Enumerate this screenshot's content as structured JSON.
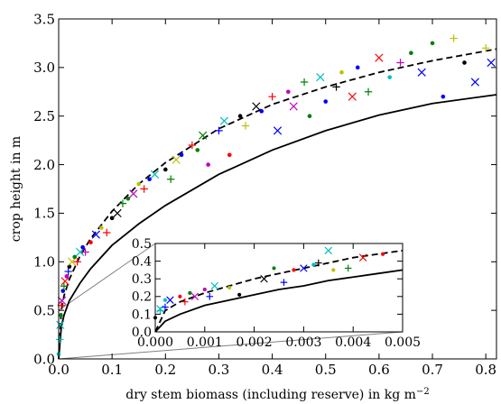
{
  "chart_data": {
    "type": "scatter",
    "title": "",
    "xlabel": "dry stem biomass (including reserve) in kg m",
    "xlabel_superscript": "−2",
    "ylabel": "crop height in m",
    "xlim": [
      0.0,
      0.82
    ],
    "ylim": [
      0.0,
      3.5
    ],
    "xticks": [
      "0.0",
      "0.1",
      "0.2",
      "0.3",
      "0.4",
      "0.5",
      "0.6",
      "0.7",
      "0.8"
    ],
    "yticks": [
      "0.0",
      "0.5",
      "1.0",
      "1.5",
      "2.0",
      "2.5",
      "3.0",
      "3.5"
    ],
    "grid": false,
    "series": [
      {
        "style": "dashed",
        "color": "#000000",
        "x": [
          0.0,
          0.005,
          0.01,
          0.02,
          0.04,
          0.06,
          0.1,
          0.15,
          0.2,
          0.3,
          0.4,
          0.5,
          0.6,
          0.7,
          0.82
        ],
        "y": [
          0.0,
          0.5,
          0.65,
          0.82,
          1.06,
          1.24,
          1.52,
          1.8,
          2.02,
          2.37,
          2.62,
          2.8,
          2.95,
          3.07,
          3.19
        ]
      },
      {
        "style": "solid",
        "color": "#000000",
        "x": [
          0.0,
          0.005,
          0.01,
          0.02,
          0.04,
          0.06,
          0.1,
          0.15,
          0.2,
          0.3,
          0.4,
          0.5,
          0.6,
          0.7,
          0.82
        ],
        "y": [
          0.0,
          0.33,
          0.45,
          0.6,
          0.78,
          0.93,
          1.17,
          1.39,
          1.58,
          1.9,
          2.15,
          2.35,
          2.51,
          2.63,
          2.72
        ]
      },
      {
        "style": "markers",
        "points": [
          [
            0.0,
            0.05,
            "dot",
            "#00bfbf"
          ],
          [
            0.002,
            0.2,
            "plus",
            "#00bfbf"
          ],
          [
            0.003,
            0.35,
            "x",
            "#00bfbf"
          ],
          [
            0.004,
            0.45,
            "dot",
            "#008000"
          ],
          [
            0.005,
            0.55,
            "plus",
            "#ff0000"
          ],
          [
            0.006,
            0.6,
            "x",
            "#bf00bf"
          ],
          [
            0.008,
            0.7,
            "dot",
            "#0000ff"
          ],
          [
            0.01,
            0.75,
            "plus",
            "#008000"
          ],
          [
            0.012,
            0.8,
            "x",
            "#ff0000"
          ],
          [
            0.015,
            0.85,
            "dot",
            "#bf00bf"
          ],
          [
            0.018,
            0.9,
            "plus",
            "#0000ff"
          ],
          [
            0.02,
            0.95,
            "dot",
            "#000000"
          ],
          [
            0.025,
            1.0,
            "x",
            "#bfbf00"
          ],
          [
            0.03,
            1.05,
            "dot",
            "#008000"
          ],
          [
            0.035,
            1.0,
            "plus",
            "#ff0000"
          ],
          [
            0.04,
            1.1,
            "x",
            "#00bfbf"
          ],
          [
            0.045,
            1.15,
            "dot",
            "#0000ff"
          ],
          [
            0.05,
            1.1,
            "plus",
            "#bf00bf"
          ],
          [
            0.06,
            1.2,
            "dot",
            "#ff0000"
          ],
          [
            0.07,
            1.28,
            "x",
            "#0000ff"
          ],
          [
            0.08,
            1.35,
            "dot",
            "#bfbf00"
          ],
          [
            0.09,
            1.3,
            "plus",
            "#ff0000"
          ],
          [
            0.1,
            1.45,
            "dot",
            "#000000"
          ],
          [
            0.11,
            1.5,
            "x",
            "#000000"
          ],
          [
            0.12,
            1.6,
            "plus",
            "#008000"
          ],
          [
            0.13,
            1.65,
            "dot",
            "#008000"
          ],
          [
            0.14,
            1.7,
            "x",
            "#bf00bf"
          ],
          [
            0.15,
            1.8,
            "dot",
            "#bfbf00"
          ],
          [
            0.16,
            1.75,
            "plus",
            "#ff0000"
          ],
          [
            0.17,
            1.85,
            "dot",
            "#0000ff"
          ],
          [
            0.18,
            1.9,
            "x",
            "#00bfbf"
          ],
          [
            0.2,
            1.95,
            "dot",
            "#000000"
          ],
          [
            0.21,
            1.85,
            "plus",
            "#008000"
          ],
          [
            0.22,
            2.05,
            "x",
            "#bfbf00"
          ],
          [
            0.23,
            2.1,
            "dot",
            "#0000ff"
          ],
          [
            0.25,
            2.2,
            "plus",
            "#ff0000"
          ],
          [
            0.26,
            2.15,
            "dot",
            "#008000"
          ],
          [
            0.27,
            2.3,
            "x",
            "#008000"
          ],
          [
            0.28,
            2.0,
            "dot",
            "#bf00bf"
          ],
          [
            0.3,
            2.35,
            "plus",
            "#0000ff"
          ],
          [
            0.31,
            2.45,
            "x",
            "#00bfbf"
          ],
          [
            0.32,
            2.1,
            "dot",
            "#ff0000"
          ],
          [
            0.34,
            2.5,
            "dot",
            "#000000"
          ],
          [
            0.35,
            2.4,
            "plus",
            "#bfbf00"
          ],
          [
            0.37,
            2.6,
            "x",
            "#000000"
          ],
          [
            0.38,
            2.55,
            "dot",
            "#0000ff"
          ],
          [
            0.4,
            2.7,
            "plus",
            "#ff0000"
          ],
          [
            0.41,
            2.35,
            "x",
            "#0000ff"
          ],
          [
            0.43,
            2.75,
            "dot",
            "#bf00bf"
          ],
          [
            0.44,
            2.6,
            "x",
            "#bf00bf"
          ],
          [
            0.46,
            2.85,
            "plus",
            "#008000"
          ],
          [
            0.47,
            2.5,
            "dot",
            "#008000"
          ],
          [
            0.49,
            2.9,
            "x",
            "#00bfbf"
          ],
          [
            0.5,
            2.65,
            "dot",
            "#0000ff"
          ],
          [
            0.52,
            2.8,
            "plus",
            "#000000"
          ],
          [
            0.53,
            2.95,
            "dot",
            "#bfbf00"
          ],
          [
            0.55,
            2.7,
            "x",
            "#ff0000"
          ],
          [
            0.56,
            3.0,
            "dot",
            "#0000ff"
          ],
          [
            0.58,
            2.75,
            "plus",
            "#008000"
          ],
          [
            0.6,
            3.1,
            "x",
            "#ff0000"
          ],
          [
            0.62,
            2.9,
            "dot",
            "#00bfbf"
          ],
          [
            0.64,
            3.05,
            "plus",
            "#bf00bf"
          ],
          [
            0.66,
            3.15,
            "dot",
            "#008000"
          ],
          [
            0.68,
            2.95,
            "x",
            "#0000ff"
          ],
          [
            0.7,
            3.25,
            "dot",
            "#008000"
          ],
          [
            0.72,
            2.7,
            "dot",
            "#0000ff"
          ],
          [
            0.74,
            3.3,
            "plus",
            "#bfbf00"
          ],
          [
            0.76,
            3.05,
            "dot",
            "#000000"
          ],
          [
            0.78,
            2.85,
            "x",
            "#0000ff"
          ],
          [
            0.8,
            3.2,
            "plus",
            "#bfbf00"
          ],
          [
            0.81,
            3.05,
            "x",
            "#0000ff"
          ]
        ]
      }
    ],
    "inset": {
      "xlim": [
        0.0,
        0.005
      ],
      "ylim": [
        0.0,
        0.5
      ],
      "xticks": [
        "0.000",
        "0.001",
        "0.002",
        "0.003",
        "0.004",
        "0.005"
      ],
      "yticks": [
        "0.0",
        "0.1",
        "0.2",
        "0.3",
        "0.4",
        "0.5"
      ],
      "dashed": {
        "x": [
          0.0,
          0.0002,
          0.0005,
          0.001,
          0.0015,
          0.002,
          0.0025,
          0.003,
          0.0035,
          0.004,
          0.0045,
          0.005
        ],
        "y": [
          0.0,
          0.12,
          0.17,
          0.22,
          0.26,
          0.3,
          0.33,
          0.36,
          0.39,
          0.42,
          0.44,
          0.46
        ]
      },
      "solid": {
        "x": [
          0.0,
          0.0002,
          0.0005,
          0.001,
          0.0015,
          0.002,
          0.0025,
          0.003,
          0.0035,
          0.004,
          0.0045,
          0.005
        ],
        "y": [
          0.0,
          0.06,
          0.1,
          0.15,
          0.18,
          0.21,
          0.24,
          0.26,
          0.29,
          0.31,
          0.33,
          0.35
        ]
      },
      "points": [
        [
          0.0,
          0.08,
          "dot",
          "#000000"
        ],
        [
          0.0001,
          0.12,
          "plus",
          "#00bfbf"
        ],
        [
          0.0001,
          0.13,
          "x",
          "#00bfbf"
        ],
        [
          0.0002,
          0.18,
          "dot",
          "#00bfbf"
        ],
        [
          0.0002,
          0.14,
          "plus",
          "#0000ff"
        ],
        [
          0.0003,
          0.18,
          "x",
          "#0000ff"
        ],
        [
          0.0005,
          0.2,
          "dot",
          "#ff0000"
        ],
        [
          0.0006,
          0.17,
          "plus",
          "#ff0000"
        ],
        [
          0.0007,
          0.22,
          "dot",
          "#008000"
        ],
        [
          0.0008,
          0.2,
          "x",
          "#bf00bf"
        ],
        [
          0.001,
          0.24,
          "dot",
          "#bf00bf"
        ],
        [
          0.0011,
          0.2,
          "plus",
          "#0000ff"
        ],
        [
          0.0012,
          0.26,
          "x",
          "#00bfbf"
        ],
        [
          0.0015,
          0.25,
          "dot",
          "#bfbf00"
        ],
        [
          0.0017,
          0.21,
          "dot",
          "#000000"
        ],
        [
          0.0022,
          0.3,
          "x",
          "#000000"
        ],
        [
          0.0024,
          0.36,
          "dot",
          "#008000"
        ],
        [
          0.0026,
          0.28,
          "plus",
          "#0000ff"
        ],
        [
          0.0028,
          0.35,
          "dot",
          "#ff0000"
        ],
        [
          0.003,
          0.36,
          "x",
          "#0000ff"
        ],
        [
          0.0032,
          0.38,
          "dot",
          "#00bfbf"
        ],
        [
          0.0033,
          0.39,
          "plus",
          "#000000"
        ],
        [
          0.0035,
          0.46,
          "x",
          "#00bfbf"
        ],
        [
          0.0036,
          0.35,
          "dot",
          "#bfbf00"
        ],
        [
          0.0039,
          0.36,
          "plus",
          "#008000"
        ],
        [
          0.0042,
          0.42,
          "x",
          "#ff0000"
        ],
        [
          0.0046,
          0.44,
          "dot",
          "#ff0000"
        ]
      ]
    }
  }
}
